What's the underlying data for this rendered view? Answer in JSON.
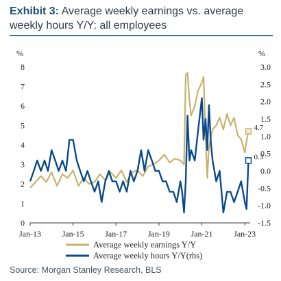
{
  "header": {
    "exhibit": "Exhibit 3:",
    "title": "Average weekly earnings vs. average weekly hours Y/Y: all employees"
  },
  "source": "Source: Morgan Stanley Research, BLS",
  "colors": {
    "earnings": "#c8b26e",
    "hours": "#0a4a8c",
    "title_accent": "#1f4e79",
    "rule": "#3a6ea5"
  },
  "chart_data": {
    "type": "line",
    "title": "Average weekly earnings vs. average weekly hours Y/Y: all employees",
    "xlabel": "",
    "ylabel_left": "%",
    "ylabel_right": "%",
    "x_tick_labels": [
      "Jan-13",
      "Jan-15",
      "Jan-17",
      "Jan-19",
      "Jan-21",
      "Jan-23"
    ],
    "x_tick_years": [
      2013,
      2015,
      2017,
      2019,
      2021,
      2023
    ],
    "x_range": [
      2013.0,
      2023.25
    ],
    "y_left_ticks": [
      "0",
      "1",
      "2",
      "3",
      "4",
      "5",
      "6",
      "7",
      "8"
    ],
    "ylim_left": [
      0,
      8
    ],
    "y_right_ticks": [
      "-1.5",
      "-1.0",
      "-0.5",
      "0.0",
      "0.5",
      "1.0",
      "1.5",
      "2.0",
      "2.5",
      "3.0"
    ],
    "ylim_right": [
      -1.5,
      3.0
    ],
    "grid": false,
    "legend_position": "bottom",
    "series": [
      {
        "name": "Average weekly earnings Y/Y",
        "axis": "left",
        "end_label": "4.7",
        "x": [
          2013.0,
          2013.25,
          2013.5,
          2013.75,
          2014.0,
          2014.25,
          2014.5,
          2014.75,
          2015.0,
          2015.25,
          2015.5,
          2015.75,
          2016.0,
          2016.25,
          2016.5,
          2016.75,
          2017.0,
          2017.25,
          2017.5,
          2017.75,
          2018.0,
          2018.25,
          2018.5,
          2018.75,
          2019.0,
          2019.25,
          2019.5,
          2019.75,
          2020.0,
          2020.17,
          2020.25,
          2020.33,
          2020.42,
          2020.5,
          2020.67,
          2020.83,
          2021.0,
          2021.08,
          2021.17,
          2021.25,
          2021.33,
          2021.5,
          2021.67,
          2021.83,
          2022.0,
          2022.17,
          2022.33,
          2022.5,
          2022.67,
          2022.83,
          2023.0,
          2023.08,
          2023.17
        ],
        "values": [
          1.8,
          2.1,
          2.4,
          2.1,
          2.6,
          1.9,
          2.5,
          2.3,
          2.7,
          1.9,
          2.3,
          2.0,
          2.1,
          2.5,
          2.2,
          2.6,
          2.3,
          2.7,
          2.1,
          2.6,
          2.7,
          2.4,
          2.9,
          3.0,
          3.2,
          3.5,
          3.1,
          3.3,
          3.2,
          3.0,
          7.6,
          7.7,
          6.3,
          5.5,
          6.0,
          6.8,
          7.2,
          7.5,
          4.5,
          2.3,
          3.9,
          4.8,
          5.0,
          5.4,
          4.8,
          5.6,
          5.0,
          5.4,
          4.5,
          4.3,
          3.6,
          4.2,
          4.7
        ]
      },
      {
        "name": "Average weekly hours Y/Y(rhs)",
        "axis": "right",
        "end_label": "0.3",
        "x": [
          2013.0,
          2013.17,
          2013.33,
          2013.5,
          2013.67,
          2013.83,
          2014.0,
          2014.17,
          2014.33,
          2014.5,
          2014.67,
          2014.83,
          2015.0,
          2015.17,
          2015.33,
          2015.5,
          2015.67,
          2015.83,
          2016.0,
          2016.17,
          2016.33,
          2016.5,
          2016.67,
          2016.83,
          2017.0,
          2017.17,
          2017.33,
          2017.5,
          2017.67,
          2017.83,
          2018.0,
          2018.17,
          2018.33,
          2018.5,
          2018.67,
          2018.83,
          2019.0,
          2019.17,
          2019.33,
          2019.5,
          2019.67,
          2019.83,
          2020.0,
          2020.08,
          2020.17,
          2020.25,
          2020.33,
          2020.42,
          2020.5,
          2020.67,
          2020.83,
          2021.0,
          2021.08,
          2021.17,
          2021.25,
          2021.33,
          2021.42,
          2021.5,
          2021.67,
          2021.83,
          2022.0,
          2022.17,
          2022.33,
          2022.5,
          2022.67,
          2022.83,
          2023.0,
          2023.08,
          2023.17
        ],
        "values": [
          -0.3,
          0.0,
          0.3,
          0.0,
          0.3,
          0.0,
          0.6,
          0.3,
          0.0,
          0.3,
          0.0,
          0.9,
          0.9,
          0.3,
          0.0,
          -0.3,
          0.0,
          -0.3,
          -0.6,
          -0.3,
          -0.9,
          -0.3,
          0.0,
          -0.3,
          -0.3,
          -0.6,
          -0.3,
          -0.6,
          0.0,
          -0.3,
          0.0,
          0.6,
          0.0,
          0.6,
          0.3,
          0.0,
          0.0,
          -0.3,
          -0.3,
          -0.6,
          -0.6,
          -0.9,
          -0.3,
          -0.6,
          -1.2,
          -0.3,
          1.6,
          0.3,
          0.6,
          0.3,
          1.2,
          2.1,
          0.9,
          1.5,
          0.6,
          1.9,
          0.8,
          0.3,
          -0.3,
          0.0,
          -1.2,
          -0.6,
          -0.6,
          -0.9,
          -0.6,
          -0.3,
          -0.9,
          -1.1,
          0.3
        ]
      }
    ]
  }
}
